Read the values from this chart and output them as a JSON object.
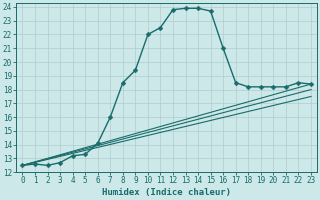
{
  "title": "",
  "xlabel": "Humidex (Indice chaleur)",
  "ylabel": "",
  "bg_color": "#cce8e8",
  "grid_color": "#b0cccc",
  "line_color": "#1a6b6b",
  "xlim": [
    -0.5,
    23.5
  ],
  "ylim": [
    12,
    24.3
  ],
  "xticks": [
    0,
    1,
    2,
    3,
    4,
    5,
    6,
    7,
    8,
    9,
    10,
    11,
    12,
    13,
    14,
    15,
    16,
    17,
    18,
    19,
    20,
    21,
    22,
    23
  ],
  "yticks": [
    12,
    13,
    14,
    15,
    16,
    17,
    18,
    19,
    20,
    21,
    22,
    23,
    24
  ],
  "series_main": {
    "x": [
      0,
      1,
      2,
      3,
      4,
      5,
      6,
      7,
      8,
      9,
      10,
      11,
      12,
      13,
      14,
      15,
      16,
      17,
      18,
      19,
      20,
      21,
      22,
      23
    ],
    "y": [
      12.5,
      12.6,
      12.5,
      12.7,
      13.2,
      13.3,
      14.1,
      16.0,
      18.5,
      19.4,
      22.0,
      22.5,
      23.8,
      23.9,
      23.9,
      23.7,
      21.0,
      18.5,
      18.2,
      18.2,
      18.2,
      18.2,
      18.5,
      18.4
    ]
  },
  "series_linear": [
    {
      "x": [
        0,
        23
      ],
      "y": [
        12.5,
        18.4
      ]
    },
    {
      "x": [
        0,
        23
      ],
      "y": [
        12.5,
        18.0
      ]
    },
    {
      "x": [
        0,
        23
      ],
      "y": [
        12.5,
        17.5
      ]
    }
  ],
  "tick_fontsize": 5.5,
  "xlabel_fontsize": 6.5
}
